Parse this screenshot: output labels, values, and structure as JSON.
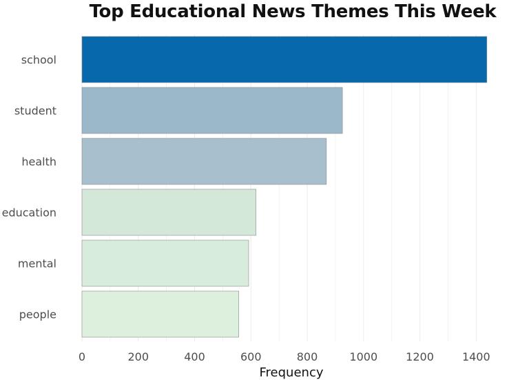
{
  "chart_data": {
    "type": "bar",
    "orientation": "horizontal",
    "title": "Top Educational News Themes This Week",
    "xlabel": "Frequency",
    "ylabel": "",
    "categories": [
      "school",
      "student",
      "health",
      "education",
      "mental",
      "people"
    ],
    "values": [
      1438,
      925,
      868,
      618,
      592,
      557
    ],
    "xlim": [
      0,
      1480
    ],
    "x_ticks": [
      0,
      200,
      400,
      600,
      800,
      1000,
      1200,
      1400
    ],
    "x_tick_labels": [
      "0",
      "200",
      "400",
      "600",
      "800",
      "1000",
      "1200",
      "1400"
    ],
    "grid": "vertical",
    "legend": "none",
    "bar_colors": [
      "#0868ac",
      "#9bb8cb",
      "#a8bfcd",
      "#d3e8d9",
      "#d8ecdb",
      "#ddf0dd"
    ],
    "colors": {
      "grid": "#ebebeb",
      "axis_text": "#4d4d4d",
      "title": "#111111",
      "bar_border": "#8a8a8a"
    }
  }
}
